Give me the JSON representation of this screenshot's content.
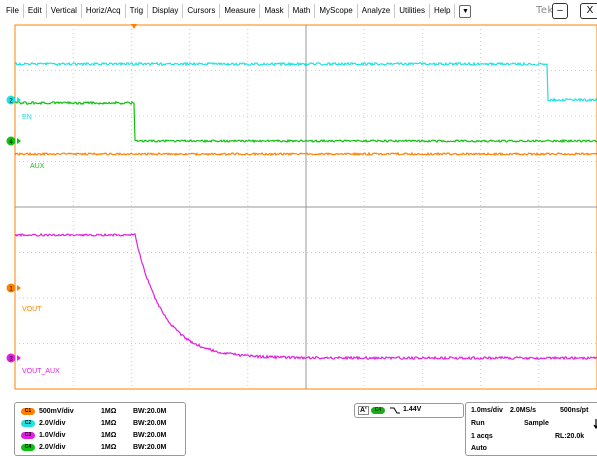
{
  "menu": [
    "File",
    "Edit",
    "Vertical",
    "Horiz/Acq",
    "Trig",
    "Display",
    "Cursors",
    "Measure",
    "Mask",
    "Math",
    "MyScope",
    "Analyze",
    "Utilities",
    "Help"
  ],
  "menu_dropdown_glyph": "▼",
  "brand": "Tek",
  "window": {
    "minimize": "–",
    "close": "X"
  },
  "colors": {
    "ch1": "#ff8000",
    "ch2": "#20e0e0",
    "ch3": "#e020e0",
    "ch4": "#10c010",
    "grid": "#b0b0b0",
    "trigger_marker": "#ff8000"
  },
  "channel_labels": {
    "en": "EN",
    "aux": "AUX",
    "vout": "VOUT",
    "vout_aux": "VOUT_AUX"
  },
  "ground_markers": {
    "ch2": "2",
    "ch4": "4",
    "ch1": "1",
    "ch3": "3"
  },
  "channels": [
    {
      "tag": "C1",
      "scale": "500mV/div",
      "impedance": "1MΩ",
      "bw": "BW:20.0M",
      "color": "#ff8000"
    },
    {
      "tag": "C2",
      "scale": "2.0V/div",
      "impedance": "1MΩ",
      "bw": "BW:20.0M",
      "color": "#20e0e0"
    },
    {
      "tag": "C3",
      "scale": "1.0V/div",
      "impedance": "1MΩ",
      "bw": "BW:20.0M",
      "color": "#e020e0"
    },
    {
      "tag": "C4",
      "scale": "2.0V/div",
      "impedance": "1MΩ",
      "bw": "BW:20.0M",
      "color": "#10c010"
    }
  ],
  "trigger": {
    "mode": "A'",
    "channel": "C4",
    "slope": "falling",
    "level": "1.44V"
  },
  "acquisition": {
    "timebase": "1.0ms/div",
    "sample_rate": "2.0MS/s",
    "resolution": "500ns/pt",
    "state": "Run",
    "mode": "Sample",
    "acqs": "1 acqs",
    "record_length": "RL:20.0k",
    "trigger_mode": "Auto"
  }
}
